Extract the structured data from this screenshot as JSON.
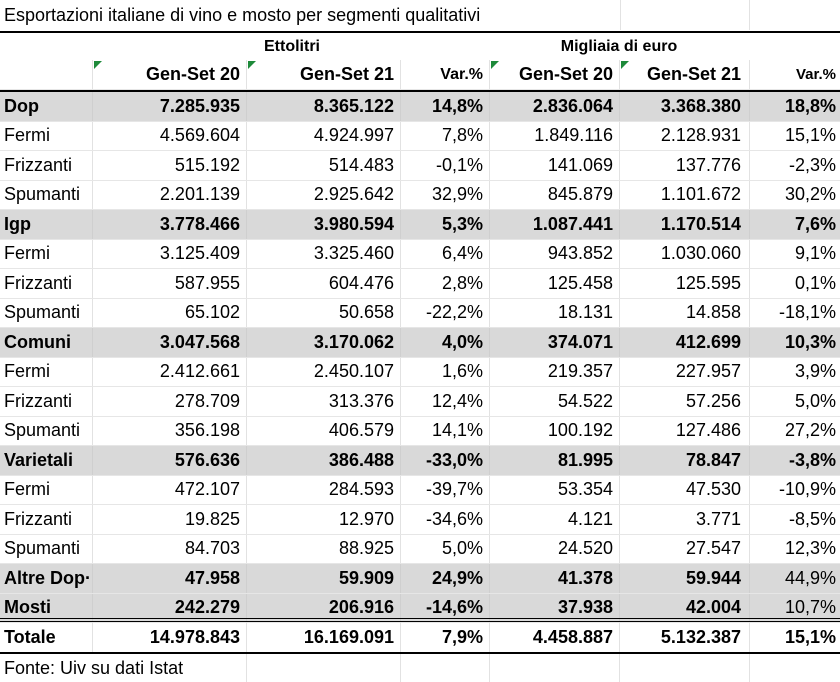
{
  "title": "Esportazioni italiane di vino e mosto per segmenti qualitativi",
  "group_headers": {
    "ettolitri": "Ettolitri",
    "euro": "Migliaia di euro"
  },
  "columns": [
    "Gen-Set 20",
    "Gen-Set 21",
    "Var.%",
    "Gen-Set 20",
    "Gen-Set 21",
    "Var.%"
  ],
  "rows": [
    {
      "label": "Dop",
      "v": [
        "7.285.935",
        "8.365.122",
        "14,8%",
        "2.836.064",
        "3.368.380",
        "18,8%"
      ],
      "type": "category"
    },
    {
      "label": "Fermi",
      "v": [
        "4.569.604",
        "4.924.997",
        "7,8%",
        "1.849.116",
        "2.128.931",
        "15,1%"
      ],
      "type": "sub"
    },
    {
      "label": "Frizzanti",
      "v": [
        "515.192",
        "514.483",
        "-0,1%",
        "141.069",
        "137.776",
        "-2,3%"
      ],
      "type": "sub"
    },
    {
      "label": "Spumanti",
      "v": [
        "2.201.139",
        "2.925.642",
        "32,9%",
        "845.879",
        "1.101.672",
        "30,2%"
      ],
      "type": "sub"
    },
    {
      "label": "Igp",
      "v": [
        "3.778.466",
        "3.980.594",
        "5,3%",
        "1.087.441",
        "1.170.514",
        "7,6%"
      ],
      "type": "category"
    },
    {
      "label": "Fermi",
      "v": [
        "3.125.409",
        "3.325.460",
        "6,4%",
        "943.852",
        "1.030.060",
        "9,1%"
      ],
      "type": "sub"
    },
    {
      "label": "Frizzanti",
      "v": [
        "587.955",
        "604.476",
        "2,8%",
        "125.458",
        "125.595",
        "0,1%"
      ],
      "type": "sub"
    },
    {
      "label": "Spumanti",
      "v": [
        "65.102",
        "50.658",
        "-22,2%",
        "18.131",
        "14.858",
        "-18,1%"
      ],
      "type": "sub"
    },
    {
      "label": "Comuni",
      "v": [
        "3.047.568",
        "3.170.062",
        "4,0%",
        "374.071",
        "412.699",
        "10,3%"
      ],
      "type": "category"
    },
    {
      "label": "Fermi",
      "v": [
        "2.412.661",
        "2.450.107",
        "1,6%",
        "219.357",
        "227.957",
        "3,9%"
      ],
      "type": "sub"
    },
    {
      "label": "Frizzanti",
      "v": [
        "278.709",
        "313.376",
        "12,4%",
        "54.522",
        "57.256",
        "5,0%"
      ],
      "type": "sub"
    },
    {
      "label": "Spumanti",
      "v": [
        "356.198",
        "406.579",
        "14,1%",
        "100.192",
        "127.486",
        "27,2%"
      ],
      "type": "sub"
    },
    {
      "label": "Varietali",
      "v": [
        "576.636",
        "386.488",
        "-33,0%",
        "81.995",
        "78.847",
        "-3,8%"
      ],
      "type": "category"
    },
    {
      "label": "Fermi",
      "v": [
        "472.107",
        "284.593",
        "-39,7%",
        "53.354",
        "47.530",
        "-10,9%"
      ],
      "type": "sub"
    },
    {
      "label": "Frizzanti",
      "v": [
        "19.825",
        "12.970",
        "-34,6%",
        "4.121",
        "3.771",
        "-8,5%"
      ],
      "type": "sub"
    },
    {
      "label": "Spumanti",
      "v": [
        "84.703",
        "88.925",
        "5,0%",
        "24.520",
        "27.547",
        "12,3%"
      ],
      "type": "sub"
    },
    {
      "label": "Altre Dop·",
      "v": [
        "47.958",
        "59.909",
        "24,9%",
        "41.378",
        "59.944",
        "44,9%"
      ],
      "type": "category_partial"
    },
    {
      "label": "Mosti",
      "v": [
        "242.279",
        "206.916",
        "-14,6%",
        "37.938",
        "42.004",
        "10,7%"
      ],
      "type": "category_partial"
    }
  ],
  "total": {
    "label": "Totale",
    "v": [
      "14.978.843",
      "16.169.091",
      "7,9%",
      "4.458.887",
      "5.132.387",
      "15,1%"
    ]
  },
  "source": "Fonte: Uiv su dati Istat",
  "colors": {
    "shade": "#d9d9d9",
    "comment_marker": "#1e8a3a"
  }
}
